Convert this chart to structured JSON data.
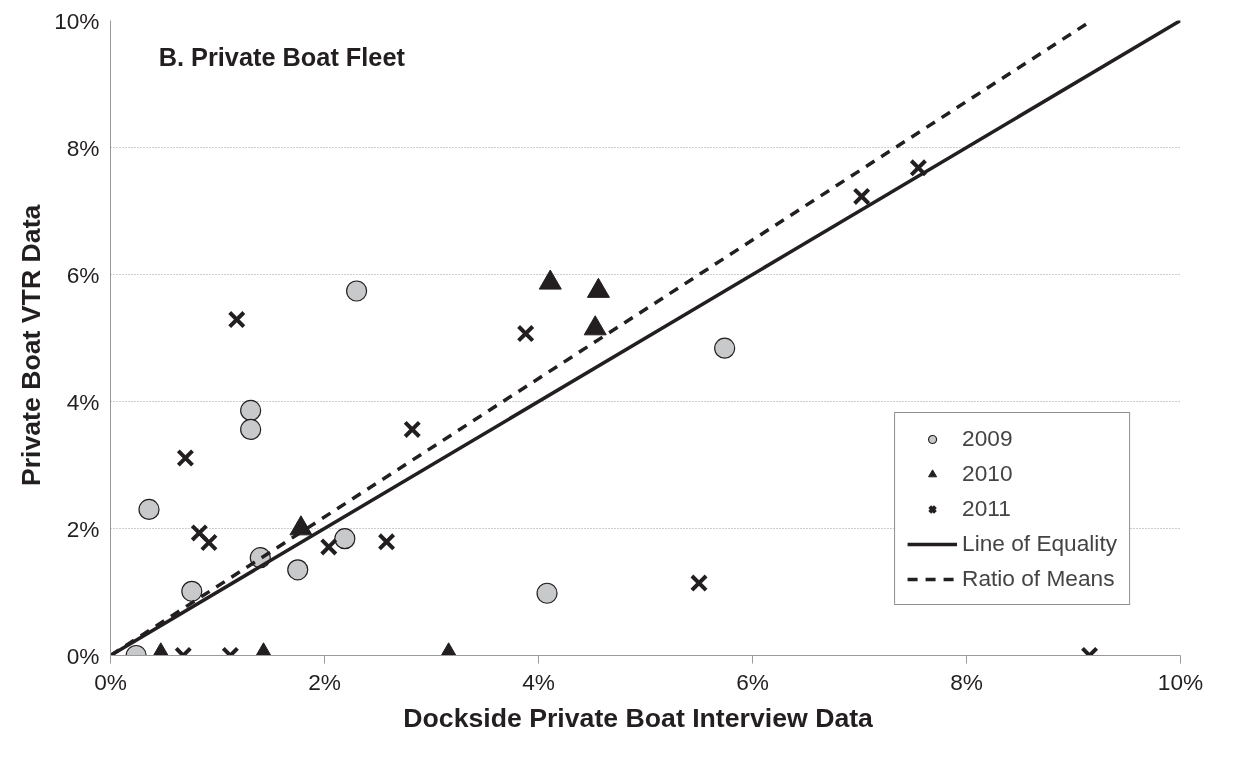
{
  "chart_data": {
    "type": "scatter",
    "title": "B.  Private Boat Fleet",
    "xlabel": "Dockside  Private Boat  Interview Data",
    "ylabel": "Private Boat  VTR  Data",
    "xlim": [
      0,
      10
    ],
    "ylim": [
      0,
      10
    ],
    "xticks": [
      {
        "value": 0,
        "label": "0%"
      },
      {
        "value": 2,
        "label": "2%"
      },
      {
        "value": 4,
        "label": "4%"
      },
      {
        "value": 6,
        "label": "6%"
      },
      {
        "value": 8,
        "label": "8%"
      },
      {
        "value": 10,
        "label": "10%"
      }
    ],
    "yticks": [
      {
        "value": 0,
        "label": "0%"
      },
      {
        "value": 2,
        "label": "2%"
      },
      {
        "value": 4,
        "label": "4%"
      },
      {
        "value": 6,
        "label": "6%"
      },
      {
        "value": 8,
        "label": "8%"
      },
      {
        "value": 10,
        "label": "10%"
      }
    ],
    "grid": "y",
    "legend": "bottom right",
    "series": [
      {
        "name": "2009",
        "marker": "circle",
        "color": "#c8c9cb",
        "x": [
          0.24,
          0.36,
          0.76,
          1.31,
          1.31,
          1.4,
          1.75,
          2.19,
          2.3,
          4.08,
          5.74
        ],
        "values": [
          0,
          2.3,
          1.01,
          3.86,
          3.56,
          1.54,
          1.35,
          1.84,
          5.74,
          0.98,
          4.84
        ]
      },
      {
        "name": "2010",
        "marker": "triangle",
        "color": "#231f20",
        "x": [
          0.47,
          1.43,
          3.16,
          1.78,
          4.11,
          4.56,
          4.53
        ],
        "values": [
          0,
          0,
          0,
          2.0,
          5.87,
          5.74,
          5.15
        ]
      },
      {
        "name": "2011",
        "marker": "cross",
        "color": "#231f20",
        "x": [
          1.18,
          0.7,
          0.83,
          0.92,
          2.04,
          2.58,
          2.82,
          0.68,
          1.12,
          3.88,
          5.5,
          7.02,
          7.55,
          9.15
        ],
        "values": [
          5.29,
          3.11,
          1.93,
          1.78,
          1.71,
          1.79,
          3.56,
          0,
          0,
          5.07,
          1.14,
          7.23,
          7.68,
          0
        ]
      },
      {
        "name": "Line of Equality",
        "type": "line",
        "line_style": "solid",
        "color": "#231f20",
        "x": [
          0,
          10
        ],
        "values": [
          0,
          10
        ]
      },
      {
        "name": "Ratio of Means",
        "type": "line",
        "line_style": "dashed",
        "color": "#231f20",
        "x": [
          0,
          9.17
        ],
        "values": [
          0,
          10
        ]
      }
    ]
  }
}
